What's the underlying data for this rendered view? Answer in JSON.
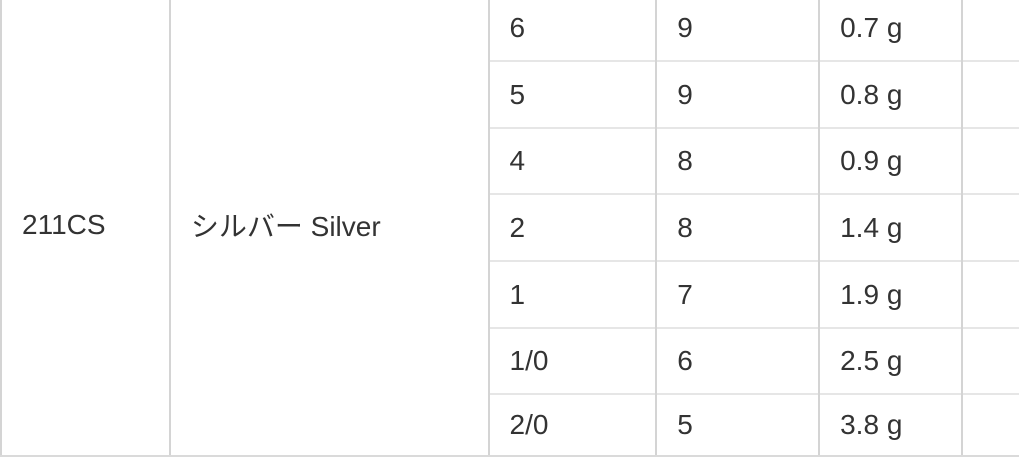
{
  "table": {
    "model": "211CS",
    "color": "シルバー Silver",
    "rows": [
      {
        "size": "6",
        "count": "9",
        "weight": "0.7 g"
      },
      {
        "size": "5",
        "count": "9",
        "weight": "0.8 g"
      },
      {
        "size": "4",
        "count": "8",
        "weight": "0.9 g"
      },
      {
        "size": "2",
        "count": "8",
        "weight": "1.4 g"
      },
      {
        "size": "1",
        "count": "7",
        "weight": "1.9 g"
      },
      {
        "size": "1/0",
        "count": "6",
        "weight": "2.5 g"
      },
      {
        "size": "2/0",
        "count": "5",
        "weight": "3.8 g"
      }
    ]
  },
  "colors": {
    "text": "#333333",
    "border_vertical": "#d4d4d4",
    "border_horizontal": "#e6e6e6",
    "border_bottom": "#dadada",
    "background": "#ffffff"
  }
}
